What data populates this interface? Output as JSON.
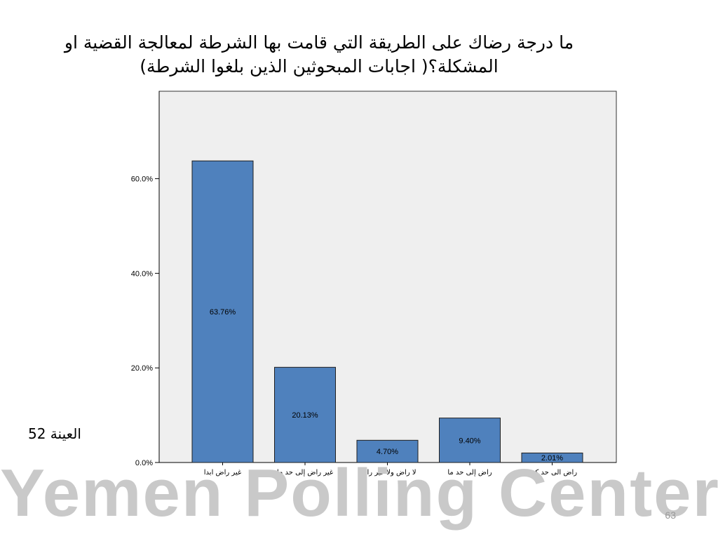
{
  "page": {
    "title": "ما درجة رضاك على الطريقة التي قامت بها الشرطة لمعالجة القضية او المشكلة؟( اجابات المبحوثين الذين بلغوا الشرطة)",
    "sample_label": "العينة 52",
    "watermark": "Yemen Polling Center",
    "page_number": "63"
  },
  "chart_data": {
    "type": "bar",
    "categories": [
      "غير راض ابدا",
      "غير راض إلى حد ما",
      "لا راض ولا غير راض",
      "راض إلى حد ما",
      "راض الى حد كبير"
    ],
    "values": [
      63.76,
      20.13,
      4.7,
      9.4,
      2.01
    ],
    "value_labels": [
      "63.76%",
      "20.13%",
      "4.70%",
      "9.40%",
      "2.01%"
    ],
    "y_ticks": [
      0,
      20,
      40,
      60
    ],
    "y_tick_labels": [
      "0.0%",
      "20.0%",
      "40.0%",
      "60.0%"
    ],
    "ylim": [
      0,
      75
    ],
    "grid": false,
    "colors": {
      "bar": "#4f81bd",
      "bar_stroke": "#1f1f1f",
      "plot_bg": "#efefef",
      "frame": "#333333"
    }
  }
}
